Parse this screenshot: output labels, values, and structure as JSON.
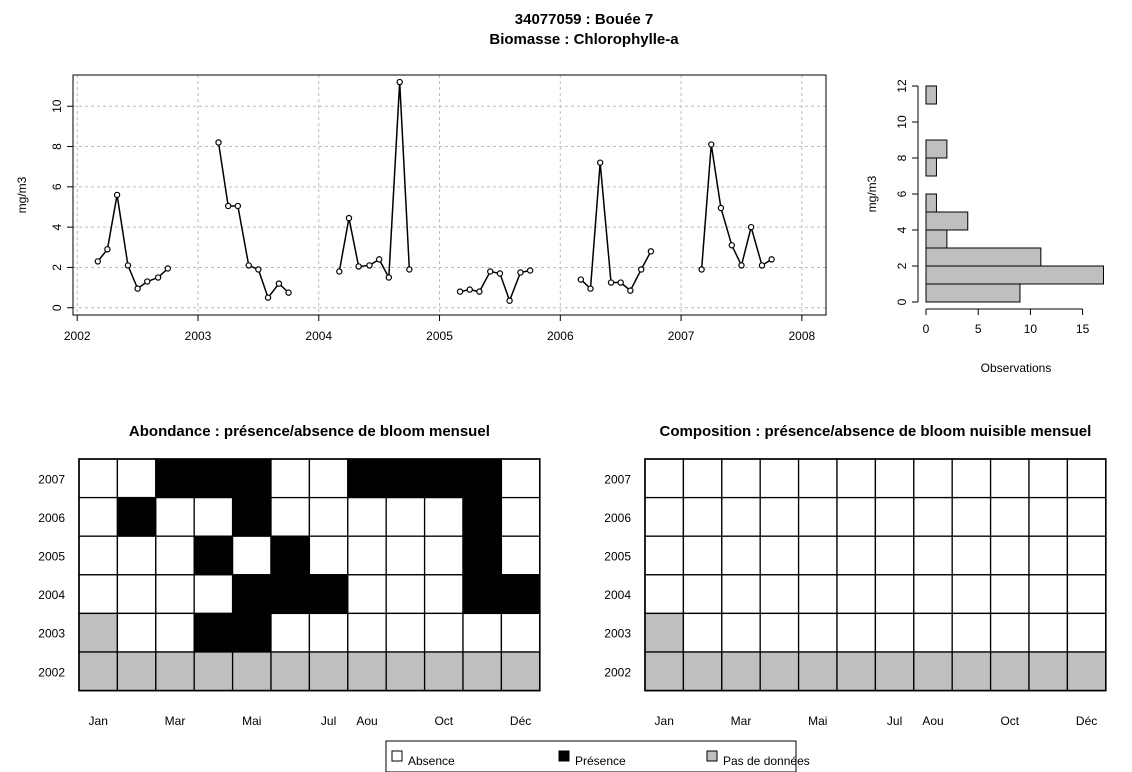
{
  "title_line1": "34077059 : Bouée 7",
  "title_line2": "Biomasse : Chlorophylle-a",
  "chart_data": [
    {
      "type": "line",
      "title": "",
      "ylabel": "mg/m3",
      "xlabel": "",
      "xlim": [
        2002,
        2008
      ],
      "ylim": [
        0,
        11.2
      ],
      "x_ticks": [
        "2002",
        "2003",
        "2004",
        "2005",
        "2006",
        "2007",
        "2008"
      ],
      "y_ticks": [
        "0",
        "2",
        "4",
        "6",
        "8",
        "10"
      ],
      "grid": true,
      "segments": [
        [
          [
            2002.17,
            2.3
          ],
          [
            2002.25,
            2.9
          ],
          [
            2002.33,
            5.6
          ],
          [
            2002.42,
            2.1
          ],
          [
            2002.5,
            0.95
          ],
          [
            2002.58,
            1.3
          ],
          [
            2002.67,
            1.5
          ],
          [
            2002.75,
            1.95
          ]
        ],
        [
          [
            2003.17,
            8.2
          ],
          [
            2003.25,
            5.05
          ],
          [
            2003.33,
            5.05
          ],
          [
            2003.42,
            2.1
          ],
          [
            2003.5,
            1.9
          ],
          [
            2003.58,
            0.5
          ],
          [
            2003.67,
            1.2
          ],
          [
            2003.75,
            0.75
          ]
        ],
        [
          [
            2004.17,
            1.8
          ],
          [
            2004.25,
            4.45
          ],
          [
            2004.33,
            2.05
          ],
          [
            2004.42,
            2.1
          ],
          [
            2004.5,
            2.4
          ],
          [
            2004.58,
            1.5
          ],
          [
            2004.67,
            11.2
          ],
          [
            2004.75,
            1.9
          ]
        ],
        [
          [
            2005.17,
            0.8
          ],
          [
            2005.25,
            0.9
          ],
          [
            2005.33,
            0.8
          ],
          [
            2005.42,
            1.8
          ],
          [
            2005.5,
            1.7
          ],
          [
            2005.58,
            0.35
          ],
          [
            2005.67,
            1.75
          ],
          [
            2005.75,
            1.85
          ]
        ],
        [
          [
            2006.17,
            1.4
          ],
          [
            2006.25,
            0.95
          ],
          [
            2006.33,
            7.2
          ],
          [
            2006.42,
            1.25
          ],
          [
            2006.5,
            1.25
          ],
          [
            2006.58,
            0.85
          ],
          [
            2006.67,
            1.9
          ],
          [
            2006.75,
            2.8
          ]
        ],
        [
          [
            2007.17,
            1.9
          ],
          [
            2007.25,
            8.1
          ],
          [
            2007.33,
            4.95
          ],
          [
            2007.42,
            3.1
          ],
          [
            2007.5,
            2.1
          ],
          [
            2007.58,
            4.0
          ],
          [
            2007.67,
            2.1
          ],
          [
            2007.75,
            2.4
          ]
        ]
      ]
    },
    {
      "type": "bar",
      "orientation": "horizontal",
      "xlabel": "Observations",
      "ylabel": "mg/m3",
      "xlim": [
        0,
        17
      ],
      "ylim": [
        0,
        12
      ],
      "x_ticks": [
        "0",
        "5",
        "10",
        "15"
      ],
      "y_ticks": [
        "0",
        "2",
        "4",
        "6",
        "8",
        "10",
        "12"
      ],
      "bins": [
        [
          0,
          1
        ],
        [
          1,
          2
        ],
        [
          2,
          3
        ],
        [
          3,
          4
        ],
        [
          4,
          5
        ],
        [
          5,
          6
        ],
        [
          6,
          7
        ],
        [
          7,
          8
        ],
        [
          8,
          9
        ],
        [
          9,
          10
        ],
        [
          10,
          11
        ],
        [
          11,
          12
        ]
      ],
      "counts": [
        9,
        17,
        11,
        2,
        4,
        1,
        0,
        1,
        2,
        0,
        0,
        1
      ],
      "bar_color": "#bfbfbf"
    },
    {
      "type": "heatmap",
      "title": "Abondance : présence/absence de bloom mensuel",
      "x_ticks": [
        "Jan",
        "Mar",
        "Mai",
        "Jul",
        "Aou",
        "Oct",
        "Déc"
      ],
      "x_tick_positions": [
        1,
        3,
        5,
        7,
        8,
        10,
        12
      ],
      "y_labels": [
        "2007",
        "2006",
        "2005",
        "2004",
        "2003",
        "2002"
      ],
      "values": [
        [
          0,
          0,
          1,
          1,
          1,
          0,
          0,
          1,
          1,
          1,
          1,
          0
        ],
        [
          0,
          1,
          0,
          0,
          1,
          0,
          0,
          0,
          0,
          0,
          1,
          0
        ],
        [
          0,
          0,
          0,
          1,
          0,
          1,
          0,
          0,
          0,
          0,
          1,
          0
        ],
        [
          0,
          0,
          0,
          0,
          1,
          1,
          1,
          0,
          0,
          0,
          1,
          1
        ],
        [
          2,
          0,
          0,
          1,
          1,
          0,
          0,
          0,
          0,
          0,
          0,
          0
        ],
        [
          2,
          2,
          2,
          2,
          2,
          2,
          2,
          2,
          2,
          2,
          2,
          2
        ]
      ],
      "value_legend": {
        "0": "Absence",
        "1": "Présence",
        "2": "Pas de données"
      }
    },
    {
      "type": "heatmap",
      "title": "Composition : présence/absence de bloom nuisible mensuel",
      "x_ticks": [
        "Jan",
        "Mar",
        "Mai",
        "Jul",
        "Aou",
        "Oct",
        "Déc"
      ],
      "x_tick_positions": [
        1,
        3,
        5,
        7,
        8,
        10,
        12
      ],
      "y_labels": [
        "2007",
        "2006",
        "2005",
        "2004",
        "2003",
        "2002"
      ],
      "values": [
        [
          0,
          0,
          0,
          0,
          0,
          0,
          0,
          0,
          0,
          0,
          0,
          0
        ],
        [
          0,
          0,
          0,
          0,
          0,
          0,
          0,
          0,
          0,
          0,
          0,
          0
        ],
        [
          0,
          0,
          0,
          0,
          0,
          0,
          0,
          0,
          0,
          0,
          0,
          0
        ],
        [
          0,
          0,
          0,
          0,
          0,
          0,
          0,
          0,
          0,
          0,
          0,
          0
        ],
        [
          2,
          0,
          0,
          0,
          0,
          0,
          0,
          0,
          0,
          0,
          0,
          0
        ],
        [
          2,
          2,
          2,
          2,
          2,
          2,
          2,
          2,
          2,
          2,
          2,
          2
        ]
      ],
      "value_legend": {
        "0": "Absence",
        "1": "Présence",
        "2": "Pas de données"
      }
    }
  ],
  "legend": {
    "items": [
      {
        "label": "Absence",
        "color": "#ffffff"
      },
      {
        "label": "Présence",
        "color": "#000000"
      },
      {
        "label": "Pas de données",
        "color": "#bfbfbf"
      }
    ]
  },
  "colors": {
    "absence": "#ffffff",
    "presence": "#000000",
    "no_data": "#bfbfbf",
    "grid": "#bdbdbd"
  }
}
